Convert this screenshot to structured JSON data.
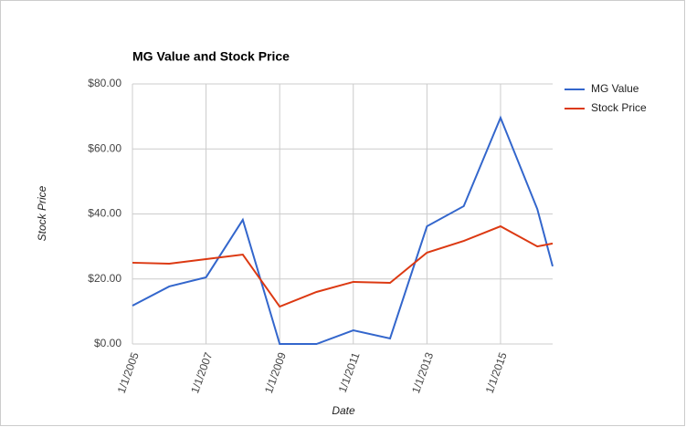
{
  "chart_data": {
    "type": "line",
    "title": "MG Value and Stock Price",
    "x_label": "Date",
    "y_label": "Stock Price",
    "x": [
      "2005-01-01",
      "2006-01-01",
      "2007-01-01",
      "2008-01-01",
      "2009-01-01",
      "2010-01-01",
      "2011-01-01",
      "2012-01-01",
      "2013-01-01",
      "2014-01-01",
      "2015-01-01",
      "2016-01-01",
      "2016-06-01"
    ],
    "series": [
      {
        "name": "MG Value",
        "color": "#3366cc",
        "values": [
          11.8,
          17.7,
          20.5,
          38.2,
          0,
          0,
          4.2,
          1.7,
          36.2,
          42.4,
          69.6,
          41.5,
          23.9
        ]
      },
      {
        "name": "Stock Price",
        "color": "#dc3912",
        "values": [
          25,
          24.7,
          26.1,
          27.5,
          11.5,
          16,
          19.1,
          18.8,
          28.1,
          31.7,
          36.2,
          30,
          30.9
        ]
      }
    ],
    "xlim": [
      "2005-01-01",
      "2016-06-01"
    ],
    "xticks": [
      {
        "value": "2005-01-01",
        "label": "1/1/2005"
      },
      {
        "value": "2007-01-01",
        "label": "1/1/2007"
      },
      {
        "value": "2009-01-01",
        "label": "1/1/2009"
      },
      {
        "value": "2011-01-01",
        "label": "1/1/2011"
      },
      {
        "value": "2013-01-01",
        "label": "1/1/2013"
      },
      {
        "value": "2015-01-01",
        "label": "1/1/2015"
      }
    ],
    "ylim": [
      0,
      80
    ],
    "yticks": [
      {
        "value": 0,
        "label": "$0.00"
      },
      {
        "value": 20,
        "label": "$20.00"
      },
      {
        "value": 40,
        "label": "$40.00"
      },
      {
        "value": 60,
        "label": "$60.00"
      },
      {
        "value": 80,
        "label": "$80.00"
      }
    ],
    "grid": true,
    "legend": "right"
  }
}
